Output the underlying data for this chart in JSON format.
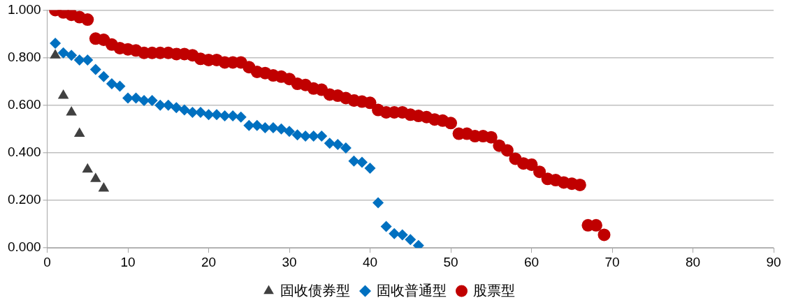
{
  "chart_data": {
    "type": "scatter",
    "legend": "bottom",
    "grid": "y",
    "xlim": [
      0,
      90
    ],
    "xticks": [
      0,
      10,
      20,
      30,
      40,
      50,
      60,
      70,
      80,
      90
    ],
    "ylim": [
      0,
      1
    ],
    "yticks": [
      {
        "value": 0,
        "label": "0.000"
      },
      {
        "value": 0.2,
        "label": "0.200"
      },
      {
        "value": 0.4,
        "label": "0.400"
      },
      {
        "value": 0.6,
        "label": "0.600"
      },
      {
        "value": 0.8,
        "label": "0.800"
      },
      {
        "value": 1,
        "label": "1.000"
      }
    ],
    "series": [
      {
        "name": "固收债券型",
        "color": "#404040",
        "marker": "triangle",
        "x": [
          1,
          2,
          3,
          4,
          5,
          6,
          7
        ],
        "values": [
          0.81,
          0.64,
          0.57,
          0.48,
          0.33,
          0.29,
          0.25
        ]
      },
      {
        "name": "固收普通型",
        "color": "#0070c0",
        "marker": "diamond",
        "x": [
          1,
          2,
          3,
          4,
          5,
          6,
          7,
          8,
          9,
          10,
          11,
          12,
          13,
          14,
          15,
          16,
          17,
          18,
          19,
          20,
          21,
          22,
          23,
          24,
          25,
          26,
          27,
          28,
          29,
          30,
          31,
          32,
          33,
          34,
          35,
          36,
          37,
          38,
          39,
          40,
          41,
          42,
          43,
          44,
          45,
          46
        ],
        "values": [
          0.86,
          0.82,
          0.81,
          0.79,
          0.79,
          0.75,
          0.72,
          0.69,
          0.68,
          0.63,
          0.63,
          0.62,
          0.62,
          0.6,
          0.6,
          0.59,
          0.58,
          0.57,
          0.57,
          0.56,
          0.56,
          0.555,
          0.555,
          0.55,
          0.515,
          0.515,
          0.505,
          0.505,
          0.5,
          0.49,
          0.475,
          0.47,
          0.47,
          0.47,
          0.44,
          0.435,
          0.42,
          0.365,
          0.36,
          0.335,
          0.19,
          0.09,
          0.06,
          0.055,
          0.035,
          0.01
        ]
      },
      {
        "name": "股票型",
        "color": "#c00000",
        "marker": "circle",
        "x": [
          1,
          2,
          3,
          4,
          5,
          6,
          7,
          8,
          9,
          10,
          11,
          12,
          13,
          14,
          15,
          16,
          17,
          18,
          19,
          20,
          21,
          22,
          23,
          24,
          25,
          26,
          27,
          28,
          29,
          30,
          31,
          32,
          33,
          34,
          35,
          36,
          37,
          38,
          39,
          40,
          41,
          42,
          43,
          44,
          45,
          46,
          47,
          48,
          49,
          50,
          51,
          52,
          53,
          54,
          55,
          56,
          57,
          58,
          59,
          60,
          61,
          62,
          63,
          64,
          65,
          66,
          67,
          68,
          69
        ],
        "values": [
          1.0,
          0.99,
          0.98,
          0.97,
          0.96,
          0.88,
          0.875,
          0.855,
          0.84,
          0.835,
          0.83,
          0.82,
          0.82,
          0.82,
          0.82,
          0.815,
          0.815,
          0.81,
          0.795,
          0.79,
          0.79,
          0.78,
          0.78,
          0.78,
          0.76,
          0.74,
          0.735,
          0.725,
          0.72,
          0.71,
          0.69,
          0.685,
          0.67,
          0.665,
          0.645,
          0.64,
          0.63,
          0.62,
          0.615,
          0.61,
          0.58,
          0.57,
          0.57,
          0.57,
          0.56,
          0.555,
          0.55,
          0.54,
          0.535,
          0.525,
          0.48,
          0.48,
          0.47,
          0.47,
          0.465,
          0.43,
          0.41,
          0.375,
          0.355,
          0.35,
          0.32,
          0.29,
          0.285,
          0.275,
          0.27,
          0.265,
          0.095,
          0.095,
          0.055
        ]
      }
    ]
  }
}
